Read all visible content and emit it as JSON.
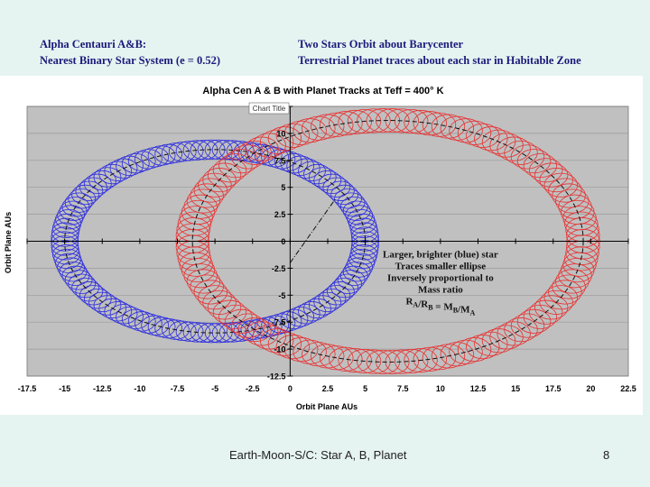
{
  "header": {
    "left_line1": "Alpha Centauri A&B:",
    "left_line2": "Nearest Binary Star System (e = 0.52)",
    "right_line1": "Two Stars Orbit about Barycenter",
    "right_line2": "Terrestrial Planet traces about each star in Habitable Zone"
  },
  "footer": {
    "text": "Earth-Moon-S/C: Star A, B, Planet",
    "page": "8"
  },
  "colors": {
    "star_a": "#2b2be0",
    "star_b": "#e83030",
    "plot_bg": "#c0c0c0"
  },
  "chart_data": {
    "type": "scatter",
    "title": "Alpha Cen A & B with Planet Tracks at Teff = 400° K",
    "title_button": "Chart Title",
    "xlabel": "Orbit Plane AUs",
    "ylabel": "Orbit Plane AUs",
    "xlim": [
      -17.5,
      22.5
    ],
    "ylim": [
      -12.5,
      12.5
    ],
    "x_ticks": [
      "-17.5",
      "-15",
      "-12.5",
      "-10",
      "-7.5",
      "-5",
      "-2.5",
      "0",
      "2.5",
      "5",
      "7.5",
      "10",
      "12.5",
      "15",
      "17.5",
      "20",
      "22.5"
    ],
    "y_ticks": [
      "12.5",
      "10",
      "7.5",
      "5",
      "2.5",
      "0",
      "-2.5",
      "-5",
      "-7.5",
      "-10",
      "-12.5"
    ],
    "grid": true,
    "series": [
      {
        "color": "#2b2be0",
        "orbit": {
          "center": [
            -5,
            0
          ],
          "semi_major": 10,
          "semi_minor": 8.5
        },
        "planet_loop_radius": 0.9
      },
      {
        "color": "#e83030",
        "orbit": {
          "center": [
            6.5,
            0
          ],
          "semi_major": 13,
          "semi_minor": 11.2
        },
        "planet_loop_radius": 1.1
      }
    ],
    "barycenter_line": {
      "from": [
        0,
        -2
      ],
      "to": [
        3,
        3.9
      ]
    },
    "annotation": {
      "lines": [
        "Larger, brighter (blue) star",
        "Traces smaller ellipse",
        "Inversely proportional to",
        "Mass ratio"
      ],
      "formula_a": "R",
      "formula_sub_a": "A",
      "formula_slash": "/R",
      "formula_sub_b": "B",
      "formula_eq": " = M",
      "formula_sub_c": "B",
      "formula_slash2": "/M",
      "formula_sub_d": "A",
      "anchor": [
        10,
        -1.5
      ]
    }
  }
}
